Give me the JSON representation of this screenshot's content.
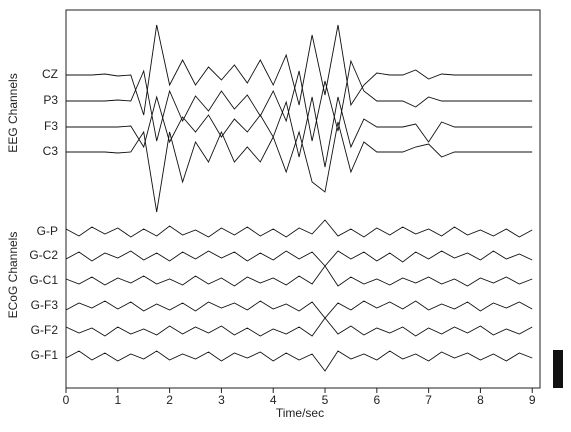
{
  "chart_data": {
    "type": "line",
    "x_label": "Time/sec",
    "group_labels": [
      "EEG Channels",
      "ECoG Channels"
    ],
    "xlim": [
      0,
      9.15
    ],
    "xticks": [
      0,
      1,
      2,
      3,
      4,
      5,
      6,
      7,
      8,
      9
    ],
    "color": "#111111",
    "x": [
      0,
      0.25,
      0.5,
      0.75,
      1,
      1.25,
      1.5,
      1.75,
      2,
      2.25,
      2.5,
      2.75,
      3,
      3.25,
      3.5,
      3.75,
      4,
      4.25,
      4.5,
      4.75,
      5,
      5.25,
      5.5,
      5.75,
      6,
      6.25,
      6.5,
      6.75,
      7,
      7.25,
      7.5,
      7.75,
      8,
      8.25,
      8.5,
      8.75,
      9
    ],
    "series": [
      {
        "name": "CZ",
        "values": [
          0,
          0,
          0,
          0.1,
          -0.1,
          0,
          -4,
          5,
          -1,
          1.5,
          -1,
          0.8,
          -0.5,
          1,
          -0.8,
          1.5,
          -1,
          2,
          -3,
          4,
          -2,
          5,
          -3,
          -1,
          0.2,
          0,
          0,
          0.5,
          -0.4,
          0.1,
          0,
          0,
          0,
          0,
          0,
          0,
          0
        ]
      },
      {
        "name": "P3",
        "values": [
          0,
          0,
          0,
          0,
          0.1,
          0,
          3,
          -4,
          1,
          -2,
          0.5,
          -1,
          1,
          -0.8,
          0.6,
          -1.5,
          1,
          -2,
          3,
          -4,
          2,
          -3,
          4,
          1,
          0,
          0,
          0,
          -0.6,
          0.4,
          0,
          0,
          0,
          0,
          0,
          0,
          0,
          0
        ]
      },
      {
        "name": "F3",
        "values": [
          0,
          0,
          0,
          0,
          0,
          0.1,
          -2,
          3,
          -1.5,
          1,
          -0.5,
          1.2,
          -1,
          0.8,
          -0.5,
          1.2,
          -1,
          2.5,
          -3,
          3,
          -4,
          3,
          -2,
          0.8,
          0,
          0,
          0,
          0.3,
          -1.5,
          0.5,
          0,
          0,
          0,
          0,
          0,
          0,
          0
        ]
      },
      {
        "name": "C3",
        "values": [
          0,
          0,
          0,
          0,
          -0.1,
          0,
          2,
          -6,
          2,
          -3,
          1,
          -1,
          2,
          -1,
          0.5,
          -1,
          1.5,
          -2,
          2,
          -3,
          -4,
          3,
          -2,
          1,
          0,
          0,
          0,
          0.5,
          0.8,
          -0.5,
          0,
          0,
          0,
          0,
          0,
          0,
          0
        ]
      },
      {
        "name": "G-P",
        "values": [
          0.3,
          -0.4,
          0.5,
          -0.2,
          0.4,
          -0.5,
          0.3,
          -0.4,
          0.6,
          -0.3,
          0.2,
          -0.5,
          0.4,
          -0.3,
          0.5,
          -0.4,
          0.3,
          -0.5,
          0.4,
          -0.2,
          1.2,
          -0.4,
          0.3,
          -0.5,
          0.4,
          -0.3,
          0.5,
          -0.2,
          0.3,
          -0.4,
          0.5,
          -0.3,
          0.2,
          -0.4,
          0.3,
          -0.5,
          0.2
        ]
      },
      {
        "name": "G-C2",
        "values": [
          -0.3,
          0.4,
          -0.5,
          0.3,
          -0.2,
          0.5,
          -0.4,
          0.3,
          -0.5,
          0.4,
          -0.3,
          0.5,
          -0.2,
          0.4,
          -0.5,
          0.3,
          -0.4,
          0.5,
          -0.3,
          0.4,
          -1,
          0.5,
          -0.3,
          0.4,
          -0.5,
          0.3,
          -0.6,
          0.4,
          -0.3,
          0.5,
          -0.2,
          0.3,
          -0.4,
          0.5,
          -0.3,
          0.2,
          -0.4
        ]
      },
      {
        "name": "G-C1",
        "values": [
          0.2,
          -0.3,
          0.4,
          -0.4,
          0.3,
          -0.2,
          0.5,
          -0.3,
          0.2,
          -0.4,
          0.5,
          -0.3,
          0.3,
          -0.5,
          0.4,
          -0.2,
          0.3,
          -0.4,
          0.5,
          -0.3,
          1.5,
          -0.5,
          0.4,
          -0.3,
          0.2,
          -0.4,
          0.3,
          -0.2,
          0.4,
          -0.3,
          0.2,
          -0.5,
          0.3,
          -0.2,
          0.4,
          -0.3,
          0.2
        ]
      },
      {
        "name": "G-F3",
        "values": [
          -0.4,
          0.3,
          -0.2,
          0.5,
          -0.3,
          0.4,
          -0.5,
          0.2,
          -0.4,
          0.3,
          -0.5,
          0.4,
          -0.2,
          0.3,
          -0.4,
          0.5,
          -0.3,
          0.2,
          -0.5,
          0.4,
          -1.2,
          0.3,
          -0.4,
          0.5,
          -0.2,
          0.4,
          -0.3,
          0.5,
          -0.4,
          0.2,
          -0.3,
          0.4,
          -0.5,
          0.3,
          -0.2,
          0.4,
          -0.3
        ]
      },
      {
        "name": "G-F2",
        "values": [
          0.4,
          -0.2,
          0.3,
          -0.5,
          0.4,
          -0.3,
          0.2,
          -0.4,
          0.5,
          -0.3,
          0.4,
          -0.2,
          0.5,
          -0.4,
          0.3,
          -0.5,
          0.2,
          -0.3,
          0.4,
          -0.5,
          1.3,
          -0.3,
          0.5,
          -0.4,
          0.3,
          -0.2,
          0.4,
          -0.5,
          0.3,
          -0.3,
          0.4,
          -0.2,
          0.5,
          -0.4,
          0.2,
          -0.3,
          0.4
        ]
      },
      {
        "name": "G-F1",
        "values": [
          -0.2,
          0.5,
          -0.4,
          0.3,
          -0.5,
          0.2,
          -0.3,
          0.5,
          -0.4,
          0.2,
          -0.3,
          0.4,
          -0.5,
          0.3,
          -0.2,
          0.4,
          -0.5,
          0.3,
          -0.4,
          0.2,
          -1.5,
          0.5,
          -0.3,
          0.2,
          -0.4,
          0.5,
          -0.3,
          0.2,
          -0.5,
          0.4,
          -0.2,
          0.3,
          -0.4,
          0.2,
          -0.5,
          0.3,
          -0.2
        ]
      }
    ]
  }
}
